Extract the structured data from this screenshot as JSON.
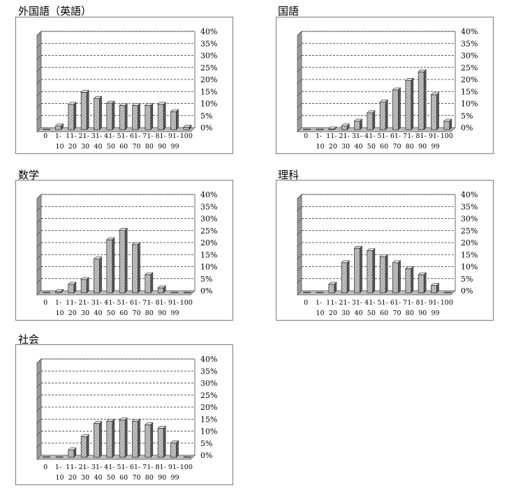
{
  "chart_data": [
    {
      "type": "bar",
      "title": "外国語（英語）",
      "categories": [
        [
          "0",
          ""
        ],
        [
          "1-",
          "10"
        ],
        [
          "11-",
          "20"
        ],
        [
          "21-",
          "30"
        ],
        [
          "31-",
          "40"
        ],
        [
          "41-",
          "50"
        ],
        [
          "51-",
          "60"
        ],
        [
          "61-",
          "70"
        ],
        [
          "71-",
          "80"
        ],
        [
          "81-",
          "90"
        ],
        [
          "91-",
          "99"
        ],
        [
          "100",
          ""
        ]
      ],
      "values": [
        0,
        1.5,
        10.5,
        15.5,
        13,
        11,
        10,
        10,
        10,
        10.5,
        7.5,
        1
      ],
      "ylim": [
        0,
        40
      ],
      "yticks": [
        "0%",
        "5%",
        "10%",
        "15%",
        "20%",
        "25%",
        "30%",
        "35%",
        "40%"
      ],
      "grid": true
    },
    {
      "type": "bar",
      "title": "国語",
      "categories": [
        [
          "0",
          ""
        ],
        [
          "1-",
          "10"
        ],
        [
          "11-",
          "20"
        ],
        [
          "21-",
          "30"
        ],
        [
          "31-",
          "40"
        ],
        [
          "41-",
          "50"
        ],
        [
          "51-",
          "60"
        ],
        [
          "61-",
          "70"
        ],
        [
          "71-",
          "80"
        ],
        [
          "81-",
          "90"
        ],
        [
          "91-",
          "99"
        ],
        [
          "100",
          ""
        ]
      ],
      "values": [
        0,
        0,
        0.3,
        1.5,
        3.5,
        7,
        11.5,
        16.5,
        20.5,
        24,
        14.5,
        3.5
      ],
      "ylim": [
        0,
        40
      ],
      "yticks": [
        "0%",
        "5%",
        "10%",
        "15%",
        "20%",
        "25%",
        "30%",
        "35%",
        "40%"
      ],
      "grid": true
    },
    {
      "type": "bar",
      "title": "数学",
      "categories": [
        [
          "0",
          ""
        ],
        [
          "1-",
          "10"
        ],
        [
          "11-",
          "20"
        ],
        [
          "21-",
          "30"
        ],
        [
          "31-",
          "40"
        ],
        [
          "41-",
          "50"
        ],
        [
          "51-",
          "60"
        ],
        [
          "61-",
          "70"
        ],
        [
          "71-",
          "80"
        ],
        [
          "81-",
          "90"
        ],
        [
          "91-",
          "99"
        ],
        [
          "100",
          ""
        ]
      ],
      "values": [
        0,
        0.5,
        3.5,
        5.5,
        14,
        22,
        26,
        20,
        7.5,
        2,
        0,
        0
      ],
      "ylim": [
        0,
        40
      ],
      "yticks": [
        "0%",
        "5%",
        "10%",
        "15%",
        "20%",
        "25%",
        "30%",
        "35%",
        "40%"
      ],
      "grid": true
    },
    {
      "type": "bar",
      "title": "理科",
      "categories": [
        [
          "0",
          ""
        ],
        [
          "1-",
          "10"
        ],
        [
          "11-",
          "20"
        ],
        [
          "21-",
          "30"
        ],
        [
          "31-",
          "40"
        ],
        [
          "41-",
          "50"
        ],
        [
          "51-",
          "60"
        ],
        [
          "61-",
          "70"
        ],
        [
          "71-",
          "80"
        ],
        [
          "81-",
          "90"
        ],
        [
          "91-",
          "99"
        ],
        [
          "100",
          ""
        ]
      ],
      "values": [
        0,
        0,
        3.5,
        12.5,
        18.5,
        17.5,
        15,
        12.5,
        10,
        7.5,
        3,
        0
      ],
      "ylim": [
        0,
        40
      ],
      "yticks": [
        "0%",
        "5%",
        "10%",
        "15%",
        "20%",
        "25%",
        "30%",
        "35%",
        "40%"
      ],
      "grid": true
    },
    {
      "type": "bar",
      "title": "社会",
      "categories": [
        [
          "0",
          ""
        ],
        [
          "1-",
          "10"
        ],
        [
          "11-",
          "20"
        ],
        [
          "21-",
          "30"
        ],
        [
          "31-",
          "40"
        ],
        [
          "41-",
          "50"
        ],
        [
          "51-",
          "60"
        ],
        [
          "61-",
          "70"
        ],
        [
          "71-",
          "80"
        ],
        [
          "81-",
          "90"
        ],
        [
          "91-",
          "99"
        ],
        [
          "100",
          ""
        ]
      ],
      "values": [
        0,
        0,
        3,
        8.5,
        14,
        15,
        15.5,
        15,
        13.5,
        12,
        6,
        0
      ],
      "ylim": [
        0,
        40
      ],
      "yticks": [
        "0%",
        "5%",
        "10%",
        "15%",
        "20%",
        "25%",
        "30%",
        "35%",
        "40%"
      ],
      "grid": true
    }
  ]
}
